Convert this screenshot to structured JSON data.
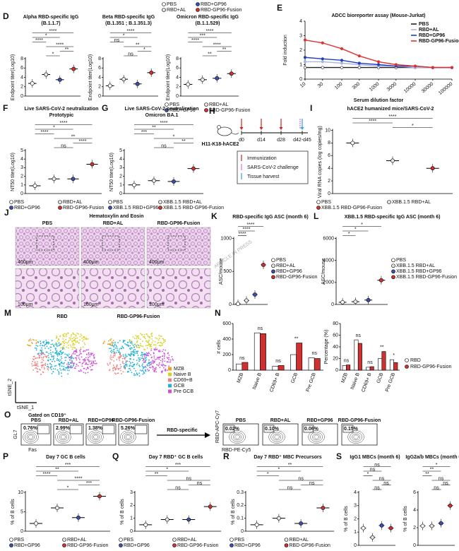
{
  "watermark": "ARTICLE IN PRESS",
  "header_legend": {
    "names": [
      "PBS",
      "RBD+GP96",
      "RBD+AL",
      "RBD-GP96-Fusion"
    ],
    "colors": [
      "#ffffff",
      "#3a4fb0",
      "#e6e6e6",
      "#d03030"
    ]
  },
  "dotplots": [
    {
      "letter": "D",
      "title": [
        "Alpha RBD-specific IgG",
        "(B.1.1.7)"
      ],
      "ylabel": "Endpoint titer(Log10)",
      "ylim": [
        0,
        8
      ],
      "yticks": [
        0,
        2,
        4,
        6,
        8
      ],
      "colors": [
        "#ffffff",
        "#e6e6e6",
        "#3a4fb0",
        "#d03030"
      ],
      "values": [
        2.7,
        4.6,
        3.5,
        5.8
      ],
      "sig": [
        "****",
        "*",
        "****",
        "****",
        "**",
        "*"
      ]
    },
    {
      "title": [
        "Beta RBD-specific IgG",
        "(B.1.351 ; B.1.351.3)"
      ],
      "ylabel": "Endpoint titer(Log10)",
      "ylim": [
        0,
        8
      ],
      "yticks": [
        0,
        2,
        4,
        6,
        8
      ],
      "colors": [
        "#ffffff",
        "#e6e6e6",
        "#3a4fb0",
        "#d03030"
      ],
      "values": [
        2.2,
        3.6,
        2.6,
        5.0
      ],
      "sig": [
        "****",
        "*",
        "ns",
        "**",
        "*",
        "ns"
      ]
    },
    {
      "title": [
        "Omicron RBD-specific IgG",
        "(B.1.1.529)"
      ],
      "ylabel": "Endpoint titer(Log10)",
      "ylim": [
        0,
        8
      ],
      "yticks": [
        0,
        2,
        4,
        6,
        8
      ],
      "colors": [
        "#ffffff",
        "#e6e6e6",
        "#3a4fb0",
        "#d03030"
      ],
      "values": [
        2.5,
        3.5,
        3.8,
        4.8
      ],
      "sig": [
        "****",
        "***",
        "****",
        "****",
        "**",
        "**"
      ],
      "legend": [
        "PBS",
        "RBD+AL",
        "RBD+GP96",
        "RBD-GP96-Fusion"
      ],
      "legend_position": "bottom"
    },
    {
      "letter": "F",
      "title": [
        "Live SARS-CoV-2 neutralization",
        "Prototypic"
      ],
      "ylabel": "NT50 titer(Log10)",
      "ylim": [
        0,
        5
      ],
      "yticks": [
        0,
        1,
        2,
        3,
        4,
        5
      ],
      "colors": [
        "#ffffff",
        "#e6e6e6",
        "#3a4fb0",
        "#d03030"
      ],
      "values": [
        0.9,
        1.7,
        1.7,
        3.4
      ],
      "sig": [
        "****",
        "*",
        "****",
        "**",
        "****",
        "ns"
      ],
      "legend": [
        "PBS",
        "RBD+AL",
        "RBD+GP96",
        "RBD-GP96-Fusion"
      ],
      "legend_position": "bottom"
    },
    {
      "letter": "G",
      "title": [
        "Live SARS-CoV-2 neutralization",
        "Omicron BA.1"
      ],
      "ylabel": "NT50 titer(Log10)",
      "ylim": [
        0,
        5
      ],
      "yticks": [
        0,
        1,
        2,
        3,
        4,
        5
      ],
      "colors": [
        "#ffffff",
        "#e6e6e6",
        "#3a4fb0",
        "#d03030"
      ],
      "values": [
        1.0,
        1.5,
        1.4,
        2.9
      ],
      "sig": [
        "****",
        "**",
        "***",
        "*",
        "**",
        "ns"
      ],
      "legend": [
        "PBS",
        "XBB.1.5 RBD+AL",
        "XBB.1.5 RBD+GP96",
        "XBB.1.5 RBD-GP96-Fusion"
      ],
      "legend_position": "bottom"
    },
    {
      "letter": "I",
      "title": [
        "hACE2 humanized mice/SARS-CoV-2"
      ],
      "ylabel": "Viral RNA copies (log copies/mg)",
      "ylim": [
        0,
        10
      ],
      "yticks": [
        0,
        2,
        4,
        6,
        8,
        10
      ],
      "colors": [
        "#ffffff",
        "#e6e6e6",
        "#d03030"
      ],
      "values": [
        8,
        5.2,
        4
      ],
      "sig": [
        "****",
        "****",
        "*"
      ],
      "legend": [
        "PBS",
        "XBB.1.5 RBD+AL",
        "XBB.1.5 RBD-GP96-Fusion"
      ],
      "legend_position": "bottom"
    },
    {
      "letter": "K",
      "title": [
        "RBD-specific IgG ASC (month 6)"
      ],
      "ylabel": "ASC/mouse",
      "ylim": [
        0,
        1000
      ],
      "yticks": [
        0,
        500,
        1000
      ],
      "colors": [
        "#ffffff",
        "#e6e6e6",
        "#3a4fb0",
        "#d03030"
      ],
      "values": [
        10,
        60,
        150,
        600
      ],
      "sig": [
        "****",
        "****",
        "****"
      ],
      "legend": [
        "PBS",
        "RBD+AL",
        "RBD+GP96",
        "RBD-GP96-Fusion"
      ],
      "legend_position": "right"
    },
    {
      "letter": "L",
      "title": [
        "XBB.1.5 RBD-specific IgG ASC (month 6)"
      ],
      "ylabel": "ASC/mouse",
      "ylim": [
        0,
        6000
      ],
      "yticks": [
        0,
        2000,
        4000,
        6000
      ],
      "colors": [
        "#ffffff",
        "#e6e6e6",
        "#3a4fb0",
        "#d03030"
      ],
      "values": [
        200,
        250,
        400,
        2200
      ],
      "sig": [
        "*",
        "*",
        "*"
      ],
      "legend": [
        "PBS",
        "XBB.1.5 RBD+AL",
        "XBB.1.5 RBD+GP96",
        "XBB.1.5 RBD-GP96-Fusion"
      ],
      "legend_position": "right"
    },
    {
      "letter": "P",
      "title": [
        "Day 7 GC B cells"
      ],
      "ylabel": "% of B cells",
      "ylim": [
        0,
        10
      ],
      "yticks": [
        0,
        5,
        10
      ],
      "colors": [
        "#ffffff",
        "#e6e6e6",
        "#3a4fb0",
        "#d03030"
      ],
      "values": [
        2,
        6,
        3.5,
        9
      ],
      "sig": [
        "***",
        "**",
        "****",
        "****",
        "***",
        "*"
      ],
      "legend": [
        "PBS",
        "RBD+AL",
        "RBD+GP96",
        "RBD-GP96-Fusion"
      ],
      "legend_position": "bottom"
    },
    {
      "letter": "Q",
      "title": [
        "Day 7 RBD⁺ GC B cells"
      ],
      "ylabel": "% of B cells",
      "ylim": [
        0,
        3
      ],
      "yticks": [
        0,
        1,
        2,
        3
      ],
      "colors": [
        "#ffffff",
        "#e6e6e6",
        "#3a4fb0",
        "#d03030"
      ],
      "values": [
        0.5,
        0.9,
        0.9,
        1.9
      ],
      "sig": [
        "***",
        "*",
        "**",
        "ns",
        "ns",
        "ns"
      ],
      "legend": [
        "PBS",
        "RBD+AL",
        "RBD+GP96",
        "RBD-GP96-Fusion"
      ],
      "legend_position": "bottom"
    },
    {
      "letter": "R",
      "title": [
        "Day 7 RBD⁺ MBC Precursors"
      ],
      "ylabel": "% of B cells",
      "ylim": [
        0,
        0.3
      ],
      "yticks": [
        0,
        0.1,
        0.2,
        0.3
      ],
      "colors": [
        "#ffffff",
        "#e6e6e6",
        "#3a4fb0",
        "#d03030"
      ],
      "values": [
        0.05,
        0.1,
        0.06,
        0.18
      ],
      "sig": [
        "**",
        "*",
        "*",
        "ns",
        "ns",
        "ns"
      ],
      "legend": [
        "PBS",
        "RBD+AL",
        "RBD+GP96",
        "RBD-GP96-Fusion"
      ],
      "legend_position": "bottom"
    },
    {
      "letter": "S",
      "title": [
        "IgG1 MBCs (month 6)"
      ],
      "ylabel": "% of B cells",
      "ylim": [
        0,
        4
      ],
      "yticks": [
        0,
        1,
        2,
        3,
        4
      ],
      "colors": [
        "#ffffff",
        "#e6e6e6",
        "#3a4fb0",
        "#d03030"
      ],
      "values": [
        1.3,
        0.6,
        1.5,
        1.3
      ],
      "sig": [
        "ns",
        "ns",
        "*",
        "ns",
        "ns",
        "ns"
      ]
    },
    {
      "title": [
        "IgG2a/b MBCs (month 6)"
      ],
      "ylabel": "% of B cells",
      "ylim": [
        0,
        6
      ],
      "yticks": [
        0,
        2,
        4,
        6
      ],
      "colors": [
        "#ffffff",
        "#e6e6e6",
        "#3a4fb0",
        "#d03030"
      ],
      "values": [
        2.2,
        2.2,
        2.5,
        4.5
      ],
      "sig": [
        "*",
        "**",
        "**",
        "ns",
        "ns",
        "ns"
      ]
    }
  ],
  "E": {
    "letter": "E",
    "type": "line",
    "title": "ADCC bioreporter assay (Mouse-Jurkat)",
    "ylabel": "Fold induction",
    "xlabel": "Serum dilution factor",
    "log_x": true,
    "legend_corner": "top-right",
    "x": [
      10,
      30,
      100,
      300,
      1000,
      3000,
      10000,
      30000,
      100000
    ],
    "xlim": [
      10,
      100000
    ],
    "xticks": [
      10,
      30,
      100,
      300,
      1000,
      3000,
      10000,
      30000,
      100000
    ],
    "ylim": [
      0,
      4
    ],
    "yticks": [
      0,
      1,
      2,
      3,
      4
    ],
    "series": [
      {
        "name": "PBS",
        "color": "#222222",
        "values": [
          0.8,
          0.8,
          0.8,
          0.8,
          0.8,
          0.8,
          0.8,
          0.8,
          0.8
        ]
      },
      {
        "name": "RBD+AL",
        "color": "#aab4e0",
        "values": [
          1.2,
          1.2,
          1.1,
          1.0,
          0.9,
          0.9,
          0.8,
          0.8,
          0.8
        ]
      },
      {
        "name": "RBD+GP96",
        "color": "#1f3fbf",
        "values": [
          1.5,
          1.4,
          1.3,
          1.1,
          1.0,
          0.9,
          0.9,
          0.8,
          0.8
        ]
      },
      {
        "name": "RBD-GP96-Fusion",
        "color": "#e03030",
        "values": [
          2.7,
          2.5,
          2.1,
          1.6,
          1.2,
          1.0,
          0.9,
          0.8,
          0.8
        ]
      }
    ]
  },
  "H": {
    "letter": "H",
    "mouse": "H11-K18-hACE2",
    "days": [
      "d0",
      "d14",
      "d28",
      "d42-d45"
    ],
    "legend": [
      "Immunization",
      "SARS-CoV-2 challenge",
      "Tissue harvest"
    ],
    "legend_colors": [
      "#d02020",
      "#e070d0",
      "#30a0e0"
    ]
  },
  "J": {
    "letter": "J",
    "title": "Hematoxylin and Eosin",
    "columns": [
      "PBS",
      "RBD+AL",
      "RBD-GP96-Fusion"
    ],
    "scale_top": "400μm",
    "scale_bottom": "100μm"
  },
  "M": {
    "letter": "M",
    "titles": [
      "RBD",
      "RBD-GP96-Fusion"
    ],
    "xlabel": "tSNE_1",
    "ylabel": "tSNE_2",
    "legend": [
      {
        "name": "MZB",
        "color": "#f0a020"
      },
      {
        "name": "Naive B",
        "color": "#d8d020"
      },
      {
        "name": "CD69+B",
        "color": "#f08080"
      },
      {
        "name": "GCB",
        "color": "#20b0d8"
      },
      {
        "name": "Pre GCB",
        "color": "#d050d8"
      }
    ]
  },
  "N": {
    "letter": "N",
    "legend": [
      {
        "name": "RBD",
        "color": "#ffffff"
      },
      {
        "name": "RBD-GP96-Fusion",
        "color": "#d03030"
      }
    ],
    "charts": [
      {
        "ylabel": "# cells",
        "ylim": [
          0,
          600
        ],
        "yticks": [
          0,
          200,
          400,
          600
        ],
        "categories": [
          "MZB",
          "Naive B",
          "CD69+ B",
          "GCB",
          "Pre GCB"
        ],
        "values": [
          [
            80,
            480,
            50,
            200,
            160
          ],
          [
            100,
            470,
            60,
            350,
            150
          ]
        ],
        "sig": [
          "ns",
          "ns",
          "ns",
          "**",
          "ns"
        ]
      },
      {
        "ylabel": "Percentage (%)",
        "ylim": [
          0,
          80
        ],
        "yticks": [
          0,
          20,
          40,
          60,
          80
        ],
        "categories": [
          "MZB",
          "Naive B",
          "CD69+ B",
          "GCB",
          "Pre GCB"
        ],
        "values": [
          [
            8,
            52,
            5,
            20,
            18
          ],
          [
            9,
            46,
            6,
            32,
            13
          ]
        ],
        "sig": [
          "ns",
          "ns",
          "ns",
          "**",
          "*"
        ]
      }
    ]
  },
  "O": {
    "letter": "O",
    "gate": "Gated on CD19⁺",
    "groups": [
      "PBS",
      "RBD+AL",
      "RBD+GP96",
      "RBD-GP96-Fusion"
    ],
    "gc_pct": [
      "0.76%",
      "2.99%",
      "1.38%",
      "5.26%"
    ],
    "yaxis": "GL7",
    "xaxis": "Fas",
    "arrow": "RBD-specific",
    "yaxis2": "RBD-APC-Cy7",
    "xaxis2": "RBD-PE-Cy5",
    "rbd_pct": [
      "0.02%",
      "0.10%",
      "0.06%",
      "0.15%"
    ]
  }
}
